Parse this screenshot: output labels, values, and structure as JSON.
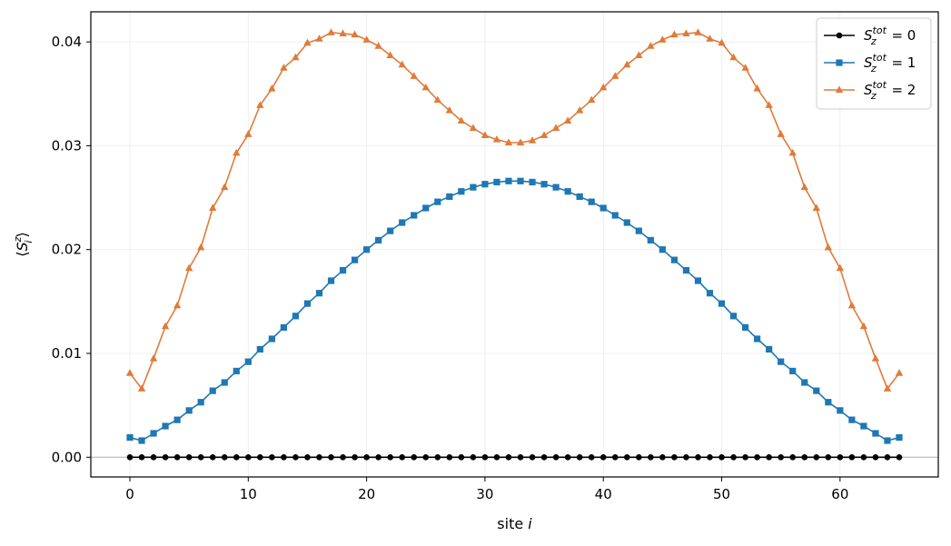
{
  "chart_data": {
    "type": "line",
    "xlabel": "site i",
    "ylabel": "⟨S_i^z⟩",
    "xlim": [
      -3.3,
      68.3
    ],
    "ylim": [
      -0.0019,
      0.0429
    ],
    "xticks": [
      0,
      10,
      20,
      30,
      40,
      50,
      60
    ],
    "yticks": [
      0.0,
      0.01,
      0.02,
      0.03,
      0.04
    ],
    "ytick_labels": [
      "0.00",
      "0.01",
      "0.02",
      "0.03",
      "0.04"
    ],
    "grid": true,
    "legend_position": "top-right",
    "x": [
      0,
      1,
      2,
      3,
      4,
      5,
      6,
      7,
      8,
      9,
      10,
      11,
      12,
      13,
      14,
      15,
      16,
      17,
      18,
      19,
      20,
      21,
      22,
      23,
      24,
      25,
      26,
      27,
      28,
      29,
      30,
      31,
      32,
      33,
      34,
      35,
      36,
      37,
      38,
      39,
      40,
      41,
      42,
      43,
      44,
      45,
      46,
      47,
      48,
      49,
      50,
      51,
      52,
      53,
      54,
      55,
      56,
      57,
      58,
      59,
      60,
      61,
      62,
      63,
      64,
      65
    ],
    "series": [
      {
        "name": "S_z^tot = 0",
        "color": "#000000",
        "marker": "circle",
        "values": [
          0,
          0,
          0,
          0,
          0,
          0,
          0,
          0,
          0,
          0,
          0,
          0,
          0,
          0,
          0,
          0,
          0,
          0,
          0,
          0,
          0,
          0,
          0,
          0,
          0,
          0,
          0,
          0,
          0,
          0,
          0,
          0,
          0,
          0,
          0,
          0,
          0,
          0,
          0,
          0,
          0,
          0,
          0,
          0,
          0,
          0,
          0,
          0,
          0,
          0,
          0,
          0,
          0,
          0,
          0,
          0,
          0,
          0,
          0,
          0,
          0,
          0,
          0,
          0,
          0,
          0
        ]
      },
      {
        "name": "S_z^tot = 1",
        "color": "#1f77b4",
        "marker": "square",
        "values": [
          0.0019,
          0.0016,
          0.0023,
          0.003,
          0.0036,
          0.0045,
          0.0053,
          0.0064,
          0.0072,
          0.0083,
          0.0092,
          0.0104,
          0.0114,
          0.0125,
          0.0136,
          0.0148,
          0.0158,
          0.017,
          0.018,
          0.019,
          0.02,
          0.0209,
          0.0218,
          0.0226,
          0.0233,
          0.024,
          0.0246,
          0.0251,
          0.0256,
          0.026,
          0.0263,
          0.0265,
          0.0266,
          0.0266,
          0.0265,
          0.0263,
          0.026,
          0.0256,
          0.0251,
          0.0246,
          0.024,
          0.0233,
          0.0226,
          0.0218,
          0.0209,
          0.02,
          0.019,
          0.018,
          0.017,
          0.0158,
          0.0148,
          0.0136,
          0.0125,
          0.0114,
          0.0104,
          0.0092,
          0.0083,
          0.0072,
          0.0064,
          0.0053,
          0.0045,
          0.0036,
          0.003,
          0.0023,
          0.0016,
          0.0019
        ]
      },
      {
        "name": "S_z^tot = 2",
        "color": "#e07b39",
        "marker": "triangle",
        "values": [
          0.0081,
          0.0066,
          0.0095,
          0.0126,
          0.0146,
          0.0182,
          0.0202,
          0.024,
          0.026,
          0.0293,
          0.0311,
          0.0339,
          0.0355,
          0.0375,
          0.0385,
          0.0399,
          0.0403,
          0.0409,
          0.0408,
          0.0407,
          0.0402,
          0.0396,
          0.0387,
          0.0378,
          0.0367,
          0.0356,
          0.0344,
          0.0334,
          0.0324,
          0.0317,
          0.031,
          0.0306,
          0.0303,
          0.0303,
          0.0305,
          0.031,
          0.0317,
          0.0324,
          0.0334,
          0.0344,
          0.0356,
          0.0367,
          0.0378,
          0.0387,
          0.0396,
          0.0402,
          0.0407,
          0.0408,
          0.0409,
          0.0403,
          0.0399,
          0.0385,
          0.0375,
          0.0355,
          0.0339,
          0.0311,
          0.0293,
          0.026,
          0.024,
          0.0202,
          0.0182,
          0.0146,
          0.0126,
          0.0095,
          0.0066,
          0.0081
        ]
      }
    ]
  }
}
